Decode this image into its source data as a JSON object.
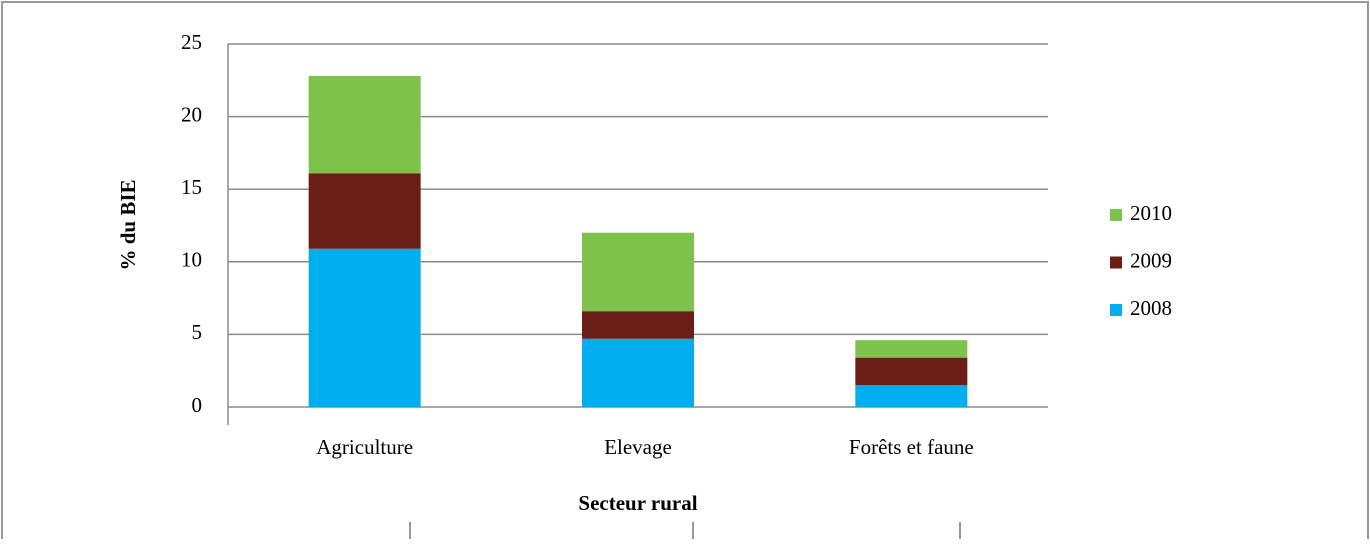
{
  "chart_data": {
    "type": "stacked_bar",
    "categories": [
      "Agriculture",
      "Elevage",
      "Forêts et faune"
    ],
    "series": [
      {
        "name": "2008",
        "color": "#00aeef",
        "values": [
          10.9,
          4.7,
          1.5
        ]
      },
      {
        "name": "2009",
        "color": "#6b1e16",
        "values": [
          5.2,
          1.9,
          1.9
        ]
      },
      {
        "name": "2010",
        "color": "#7dc24b",
        "values": [
          6.7,
          5.4,
          1.2
        ]
      }
    ],
    "y_label": "% du BIE",
    "x_label": "Secteur rural",
    "ylim": [
      0,
      25
    ],
    "yticks": [
      0,
      5,
      10,
      15,
      20,
      25
    ],
    "grid": true,
    "legend": "right"
  }
}
